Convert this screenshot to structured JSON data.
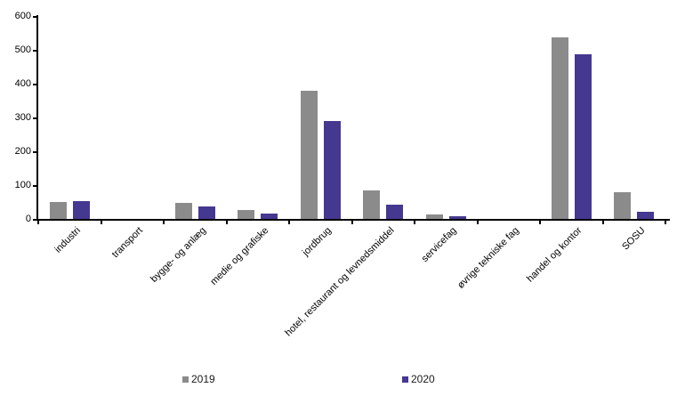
{
  "chart_data": {
    "type": "bar",
    "title": "",
    "xlabel": "",
    "ylabel": "",
    "categories": [
      "industri",
      "transport",
      "bygge- og anlæg",
      "medie og grafiske",
      "jordbrug",
      "hotel, restaurant og levnedsmiddel",
      "servicefag",
      "øvrige tekniske fag",
      "handel og kontor",
      "SOSU"
    ],
    "series": [
      {
        "name": "2019",
        "color": "#8B8B8B",
        "values": [
          50,
          0,
          47,
          27,
          380,
          85,
          13,
          0,
          538,
          80
        ]
      },
      {
        "name": "2020",
        "color": "#453890",
        "values": [
          53,
          0,
          38,
          15,
          290,
          42,
          8,
          0,
          486,
          21
        ]
      }
    ],
    "ylim": [
      0,
      600
    ],
    "yticks": [
      0,
      100,
      200,
      300,
      400,
      500,
      600
    ],
    "grid": false,
    "legend_position": "bottom",
    "colors": {
      "axis": "#000000",
      "background": "#ffffff",
      "text": "#000000"
    }
  }
}
